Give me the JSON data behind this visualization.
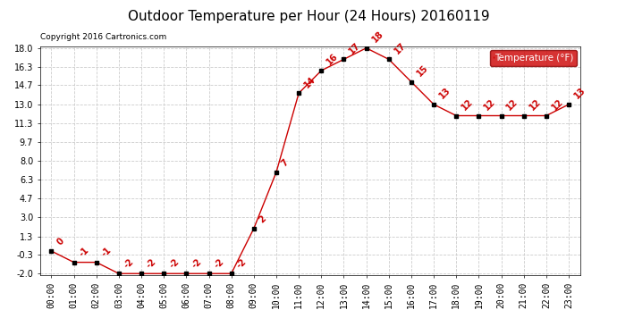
{
  "title": "Outdoor Temperature per Hour (24 Hours) 20160119",
  "copyright": "Copyright 2016 Cartronics.com",
  "legend_label": "Temperature (°F)",
  "hours": [
    "00:00",
    "01:00",
    "02:00",
    "03:00",
    "04:00",
    "05:00",
    "06:00",
    "07:00",
    "08:00",
    "09:00",
    "10:00",
    "11:00",
    "12:00",
    "13:00",
    "14:00",
    "15:00",
    "16:00",
    "17:00",
    "18:00",
    "19:00",
    "20:00",
    "21:00",
    "22:00",
    "23:00"
  ],
  "temperatures": [
    0,
    -1,
    -1,
    -2,
    -2,
    -2,
    -2,
    -2,
    -2,
    2,
    7,
    14,
    16,
    17,
    18,
    17,
    15,
    13,
    12,
    12,
    12,
    12,
    12,
    13
  ],
  "ylim": [
    -2.0,
    18.0
  ],
  "yticks": [
    -2.0,
    -0.3,
    1.3,
    3.0,
    4.7,
    6.3,
    8.0,
    9.7,
    11.3,
    13.0,
    14.7,
    16.3,
    18.0
  ],
  "line_color": "#cc0000",
  "marker_color": "#000000",
  "label_color": "#cc0000",
  "bg_color": "#ffffff",
  "plot_bg_color": "#ffffff",
  "grid_color": "#cccccc",
  "legend_bg": "#cc0000",
  "legend_text_color": "#ffffff",
  "title_fontsize": 11,
  "tick_fontsize": 7,
  "label_fontsize": 7.5,
  "copyright_fontsize": 6.5,
  "annot_fontsize": 7
}
